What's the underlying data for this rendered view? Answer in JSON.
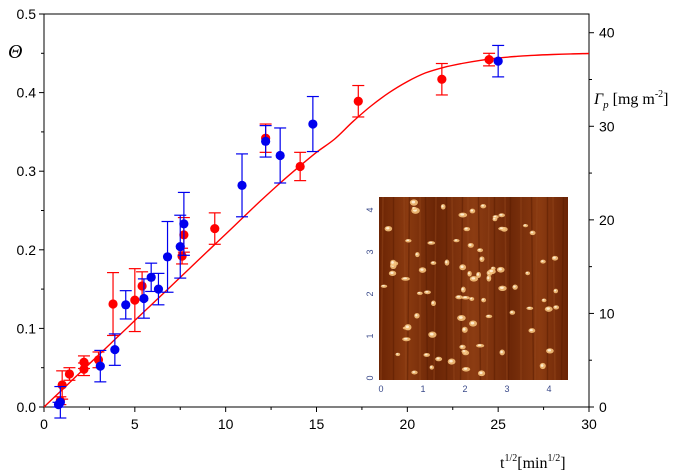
{
  "chart_data": {
    "type": "scatter",
    "title": "",
    "xlabel": "t",
    "xlabel_sup": "1/2",
    "xlabel_unit_open": "[min",
    "xlabel_unit_sup": "1/2",
    "xlabel_unit_close": "]",
    "ylabel": "Θ",
    "y2label_symbol": "Γ",
    "y2label_sub": "p",
    "y2label_unit": " [mg m",
    "y2label_unit_sup": "-2",
    "y2label_unit_close": "]",
    "xlim": [
      0,
      30
    ],
    "ylim": [
      0,
      0.5
    ],
    "y2lim": [
      0,
      42
    ],
    "x_ticks": [
      "0",
      "5",
      "10",
      "15",
      "20",
      "25",
      "30"
    ],
    "y_ticks": [
      "0.0",
      "0.1",
      "0.2",
      "0.3",
      "0.4",
      "0.5"
    ],
    "y2_ticks": [
      "0",
      "10",
      "20",
      "30",
      "40"
    ],
    "grid": false,
    "colors": {
      "red": "#ff0000",
      "blue": "#0000ee",
      "curve": "#ff0000"
    },
    "series": [
      {
        "color": "red",
        "points": [
          {
            "x": 0.9,
            "y": 0.008,
            "err": 0.005
          },
          {
            "x": 1.0,
            "y": 0.028,
            "err": 0.018
          },
          {
            "x": 1.4,
            "y": 0.042,
            "err": 0.008
          },
          {
            "x": 2.2,
            "y": 0.048,
            "err": 0.008
          },
          {
            "x": 2.2,
            "y": 0.057,
            "err": 0.008
          },
          {
            "x": 3.0,
            "y": 0.06,
            "err": 0.01
          },
          {
            "x": 3.8,
            "y": 0.131,
            "err": 0.04
          },
          {
            "x": 5.0,
            "y": 0.136,
            "err": 0.04
          },
          {
            "x": 5.4,
            "y": 0.154,
            "err": 0.018
          },
          {
            "x": 7.6,
            "y": 0.192,
            "err": 0.01
          },
          {
            "x": 7.7,
            "y": 0.219,
            "err": 0.022
          },
          {
            "x": 9.4,
            "y": 0.227,
            "err": 0.02
          },
          {
            "x": 12.2,
            "y": 0.342,
            "err": 0.018
          },
          {
            "x": 14.1,
            "y": 0.306,
            "err": 0.018
          },
          {
            "x": 17.3,
            "y": 0.389,
            "err": 0.02
          },
          {
            "x": 21.9,
            "y": 0.417,
            "err": 0.02
          },
          {
            "x": 24.5,
            "y": 0.442,
            "err": 0.008
          }
        ]
      },
      {
        "color": "blue",
        "points": [
          {
            "x": 0.8,
            "y": 0.003,
            "err": 0.003
          },
          {
            "x": 0.9,
            "y": 0.006,
            "err": 0.02
          },
          {
            "x": 3.1,
            "y": 0.052,
            "err": 0.02
          },
          {
            "x": 3.9,
            "y": 0.073,
            "err": 0.02
          },
          {
            "x": 4.5,
            "y": 0.13,
            "err": 0.018
          },
          {
            "x": 5.5,
            "y": 0.138,
            "err": 0.025
          },
          {
            "x": 5.9,
            "y": 0.165,
            "err": 0.018
          },
          {
            "x": 6.3,
            "y": 0.15,
            "err": 0.02
          },
          {
            "x": 6.8,
            "y": 0.191,
            "err": 0.045
          },
          {
            "x": 7.5,
            "y": 0.204,
            "err": 0.04
          },
          {
            "x": 7.7,
            "y": 0.233,
            "err": 0.04
          },
          {
            "x": 10.9,
            "y": 0.282,
            "err": 0.04
          },
          {
            "x": 12.2,
            "y": 0.338,
            "err": 0.02
          },
          {
            "x": 13.0,
            "y": 0.32,
            "err": 0.035
          },
          {
            "x": 14.8,
            "y": 0.36,
            "err": 0.035
          },
          {
            "x": 25.0,
            "y": 0.44,
            "err": 0.02
          }
        ]
      }
    ],
    "curve": {
      "x": [
        0,
        1,
        2,
        3,
        4,
        5,
        6,
        7,
        8,
        9,
        10,
        11,
        12,
        13,
        14,
        15,
        16,
        17,
        18,
        19,
        20,
        21,
        22,
        23,
        24,
        25,
        26,
        27,
        28,
        29,
        30
      ],
      "y": [
        0.0,
        0.022,
        0.044,
        0.066,
        0.088,
        0.11,
        0.132,
        0.154,
        0.176,
        0.198,
        0.22,
        0.242,
        0.264,
        0.285,
        0.305,
        0.324,
        0.341,
        0.363,
        0.383,
        0.4,
        0.414,
        0.425,
        0.432,
        0.437,
        0.441,
        0.444,
        0.446,
        0.4475,
        0.4485,
        0.4493,
        0.4497
      ]
    },
    "inset": {
      "x_ticks": [
        "0",
        "1",
        "2",
        "3",
        "4"
      ],
      "y_ticks": [
        "0",
        "1",
        "2",
        "3",
        "4"
      ],
      "colors": {
        "background": "#7a2e08",
        "spot": "#f4c07a"
      }
    }
  }
}
